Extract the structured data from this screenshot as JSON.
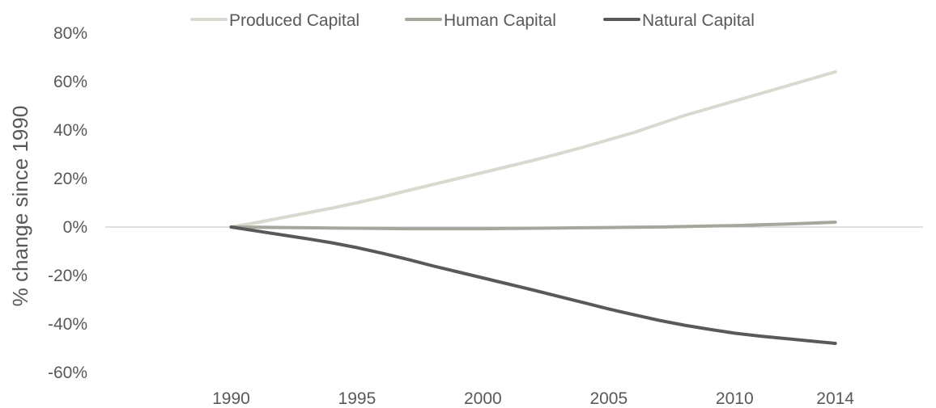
{
  "chart_data": {
    "type": "line",
    "title": "",
    "xlabel": "",
    "ylabel": "% change since 1990",
    "x": [
      1990,
      1991,
      1992,
      1993,
      1994,
      1995,
      1996,
      1997,
      1998,
      1999,
      2000,
      2001,
      2002,
      2003,
      2004,
      2005,
      2006,
      2007,
      2008,
      2009,
      2010,
      2011,
      2012,
      2013,
      2014
    ],
    "x_ticks": [
      1990,
      1995,
      2000,
      2005,
      2010,
      2014
    ],
    "x_tick_labels": [
      "1990",
      "1995",
      "2000",
      "2005",
      "2010",
      "2014"
    ],
    "xlim": [
      1985,
      2018
    ],
    "y_ticks": [
      80,
      60,
      40,
      20,
      0,
      -20,
      -40,
      -60
    ],
    "y_tick_labels": [
      "80%",
      "60%",
      "40%",
      "20%",
      "0%",
      "-20%",
      "-40%",
      "-60%"
    ],
    "ylim": [
      -60,
      80
    ],
    "grid": false,
    "zero_line": true,
    "legend_position": "top",
    "series": [
      {
        "name": "Produced Capital",
        "color": "#d9d9cf",
        "values": [
          0,
          1.8,
          3.8,
          5.8,
          7.8,
          10,
          12.4,
          15,
          17.5,
          20,
          22.5,
          25,
          27.5,
          30.2,
          33,
          36,
          39,
          42.5,
          46,
          49,
          52,
          55,
          58,
          61,
          64
        ]
      },
      {
        "name": "Human Capital",
        "color": "#a6a69d",
        "values": [
          0,
          -0.1,
          -0.2,
          -0.3,
          -0.4,
          -0.5,
          -0.6,
          -0.7,
          -0.7,
          -0.7,
          -0.7,
          -0.6,
          -0.5,
          -0.4,
          -0.3,
          -0.2,
          -0.1,
          0,
          0.2,
          0.4,
          0.6,
          0.9,
          1.2,
          1.6,
          2
        ]
      },
      {
        "name": "Natural Capital",
        "color": "#595959",
        "values": [
          0,
          -1.6,
          -3.2,
          -4.8,
          -6.5,
          -8.5,
          -10.8,
          -13.3,
          -16,
          -18.5,
          -21,
          -23.5,
          -26,
          -28.6,
          -31.2,
          -33.8,
          -36.2,
          -38.5,
          -40.5,
          -42.2,
          -43.8,
          -45,
          -46,
          -47,
          -48
        ]
      }
    ]
  }
}
